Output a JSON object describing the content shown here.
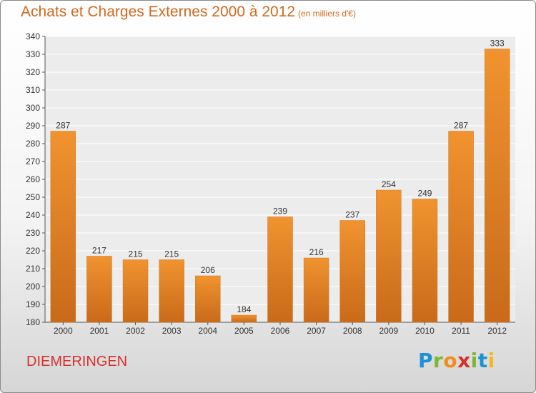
{
  "title": "Achats et Charges Externes 2000 à 2012",
  "subtitle": "(en milliers d'€)",
  "commune": "DIEMERINGEN",
  "logo": {
    "letters": [
      "P",
      "r",
      "o",
      "x",
      "i",
      "t",
      "i"
    ],
    "colors": [
      "#1e90d6",
      "#7cb82f",
      "#f28c1e",
      "#d4312f",
      "#7cb82f",
      "#1e90d6",
      "#f2b81e"
    ]
  },
  "chart_data": {
    "type": "bar",
    "categories": [
      "2000",
      "2001",
      "2002",
      "2003",
      "2004",
      "2005",
      "2006",
      "2007",
      "2008",
      "2009",
      "2010",
      "2011",
      "2012"
    ],
    "values": [
      287,
      217,
      215,
      215,
      206,
      184,
      239,
      216,
      237,
      254,
      249,
      287,
      333
    ],
    "ylim": [
      180,
      340
    ],
    "yticks": [
      180,
      190,
      200,
      210,
      220,
      230,
      240,
      250,
      260,
      270,
      280,
      290,
      300,
      310,
      320,
      330,
      340
    ],
    "grid": true,
    "bar_color": "#f0932f",
    "bar_color_dark": "#c96a1a"
  }
}
